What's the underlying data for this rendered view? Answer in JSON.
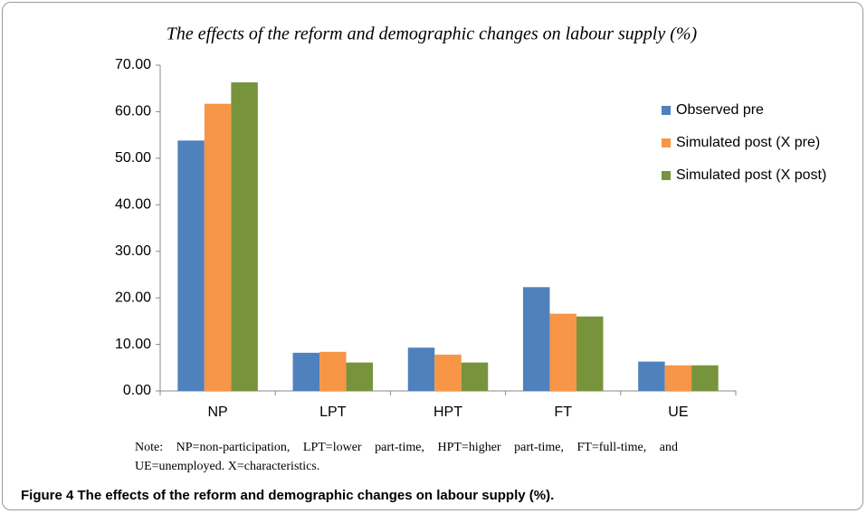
{
  "chart_data": {
    "type": "bar",
    "title": "The effects of the reform and demographic changes on labour supply (%)",
    "categories": [
      "NP",
      "LPT",
      "HPT",
      "FT",
      "UE"
    ],
    "series": [
      {
        "name": "Observed pre",
        "color": "#4f81bd",
        "values": [
          53.8,
          8.2,
          9.3,
          22.3,
          6.3
        ]
      },
      {
        "name": "Simulated post (X pre)",
        "color": "#f79646",
        "values": [
          61.7,
          8.4,
          7.8,
          16.6,
          5.5
        ]
      },
      {
        "name": "Simulated post (X post)",
        "color": "#77933c",
        "values": [
          66.3,
          6.1,
          6.1,
          16.0,
          5.5
        ]
      }
    ],
    "ylim": [
      0,
      70
    ],
    "yticks": [
      {
        "value": 0,
        "label": "0.00"
      },
      {
        "value": 10,
        "label": "10.00"
      },
      {
        "value": 20,
        "label": "20.00"
      },
      {
        "value": 30,
        "label": "30.00"
      },
      {
        "value": 40,
        "label": "40.00"
      },
      {
        "value": 50,
        "label": "50.00"
      },
      {
        "value": 60,
        "label": "60.00"
      },
      {
        "value": 70,
        "label": "70.00"
      }
    ],
    "grid": false,
    "legend": "upper right"
  },
  "note": "Note: NP=non-participation, LPT=lower part-time, HPT=higher part-time, FT=full-time, and UE=unemployed. X=characteristics.",
  "caption": "Figure 4 The effects of the reform and demographic changes on labour supply (%)."
}
